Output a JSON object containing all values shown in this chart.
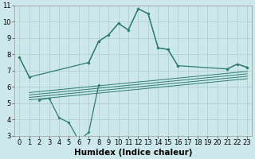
{
  "xlabel": "Humidex (Indice chaleur)",
  "bg_color": "#cde8ec",
  "line_color": "#2e7d6e",
  "grid_color": "#aacccc",
  "curve_main_x": [
    0,
    1,
    2,
    3,
    4,
    5,
    6,
    7,
    8,
    9,
    10,
    11,
    12,
    13,
    14,
    15,
    16,
    17,
    18,
    19,
    20,
    21,
    22,
    23
  ],
  "curve_main_y": [
    7.8,
    6.6,
    null,
    null,
    null,
    null,
    null,
    7.5,
    8.8,
    9.2,
    9.9,
    9.5,
    10.8,
    10.5,
    8.4,
    8.3,
    7.3,
    null,
    null,
    null,
    null,
    7.1,
    7.4,
    7.2
  ],
  "curve_low_x": [
    2,
    3,
    4,
    5,
    6,
    7,
    8
  ],
  "curve_low_y": [
    5.2,
    5.3,
    4.1,
    3.8,
    2.7,
    3.2,
    6.1
  ],
  "flat_lines": [
    {
      "x": [
        1,
        23
      ],
      "y_start": 5.2,
      "y_end": 6.5
    },
    {
      "x": [
        1,
        23
      ],
      "y_start": 5.35,
      "y_end": 6.65
    },
    {
      "x": [
        1,
        23
      ],
      "y_start": 5.5,
      "y_end": 6.8
    },
    {
      "x": [
        1,
        23
      ],
      "y_start": 5.65,
      "y_end": 6.95
    }
  ],
  "ylim": [
    3,
    11
  ],
  "xlim": [
    -0.5,
    23.5
  ],
  "yticks": [
    3,
    4,
    5,
    6,
    7,
    8,
    9,
    10,
    11
  ],
  "xticks": [
    0,
    1,
    2,
    3,
    4,
    5,
    6,
    7,
    8,
    9,
    10,
    11,
    12,
    13,
    14,
    15,
    16,
    17,
    18,
    19,
    20,
    21,
    22,
    23
  ],
  "tick_fontsize": 6,
  "xlabel_fontsize": 7.5
}
